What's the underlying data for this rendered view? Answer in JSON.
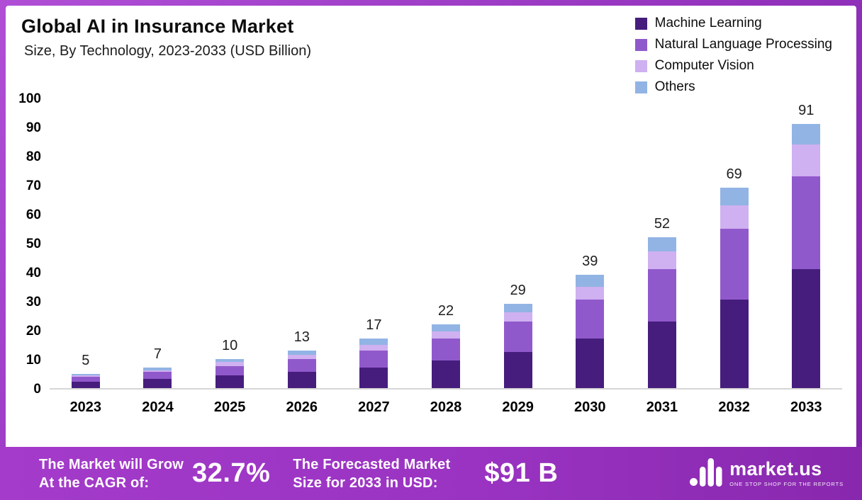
{
  "header": {
    "title": "Global AI in Insurance Market",
    "subtitle": "Size, By Technology, 2023-2033 (USD Billion)"
  },
  "chart_data": {
    "type": "bar",
    "stacked": true,
    "title": "Global AI in Insurance Market Size, By Technology, 2023-2033 (USD Billion)",
    "categories": [
      "2023",
      "2024",
      "2025",
      "2026",
      "2027",
      "2028",
      "2029",
      "2030",
      "2031",
      "2032",
      "2033"
    ],
    "series": [
      {
        "name": "Machine Learning",
        "color": "#461d7d",
        "values": [
          2.3,
          3.2,
          4.5,
          5.5,
          7,
          9.5,
          12.5,
          17,
          23,
          30.5,
          41
        ]
      },
      {
        "name": "Natural Language Processing",
        "color": "#9059cb",
        "values": [
          1.7,
          2.3,
          3,
          4.5,
          6,
          7.5,
          10.5,
          13.5,
          18,
          24.5,
          32
        ]
      },
      {
        "name": "Computer Vision",
        "color": "#cfb0f0",
        "values": [
          0.5,
          0.7,
          1.5,
          1.5,
          2,
          2.5,
          3,
          4.5,
          6,
          8,
          11
        ]
      },
      {
        "name": "Others",
        "color": "#92b4e4",
        "values": [
          0.5,
          0.8,
          1,
          1.5,
          2,
          2.5,
          3,
          4,
          5,
          6,
          7
        ]
      }
    ],
    "totals": [
      5,
      7,
      10,
      13,
      17,
      22,
      29,
      39,
      52,
      69,
      91
    ],
    "xlabel": "",
    "ylabel": "",
    "ylim": [
      0,
      100
    ],
    "yticks": [
      0,
      10,
      20,
      30,
      40,
      50,
      60,
      70,
      80,
      90,
      100
    ],
    "grid": false,
    "legend_position": "top-right"
  },
  "footer": {
    "cagr_line1": "The Market will Grow",
    "cagr_line2": "At the CAGR of:",
    "cagr_value": "32.7%",
    "forecast_line1": "The Forecasted Market",
    "forecast_line2": "Size for 2033 in USD:",
    "forecast_value": "$91 B",
    "logo_text": "market.us",
    "logo_tagline": "ONE STOP SHOP FOR THE REPORTS"
  }
}
